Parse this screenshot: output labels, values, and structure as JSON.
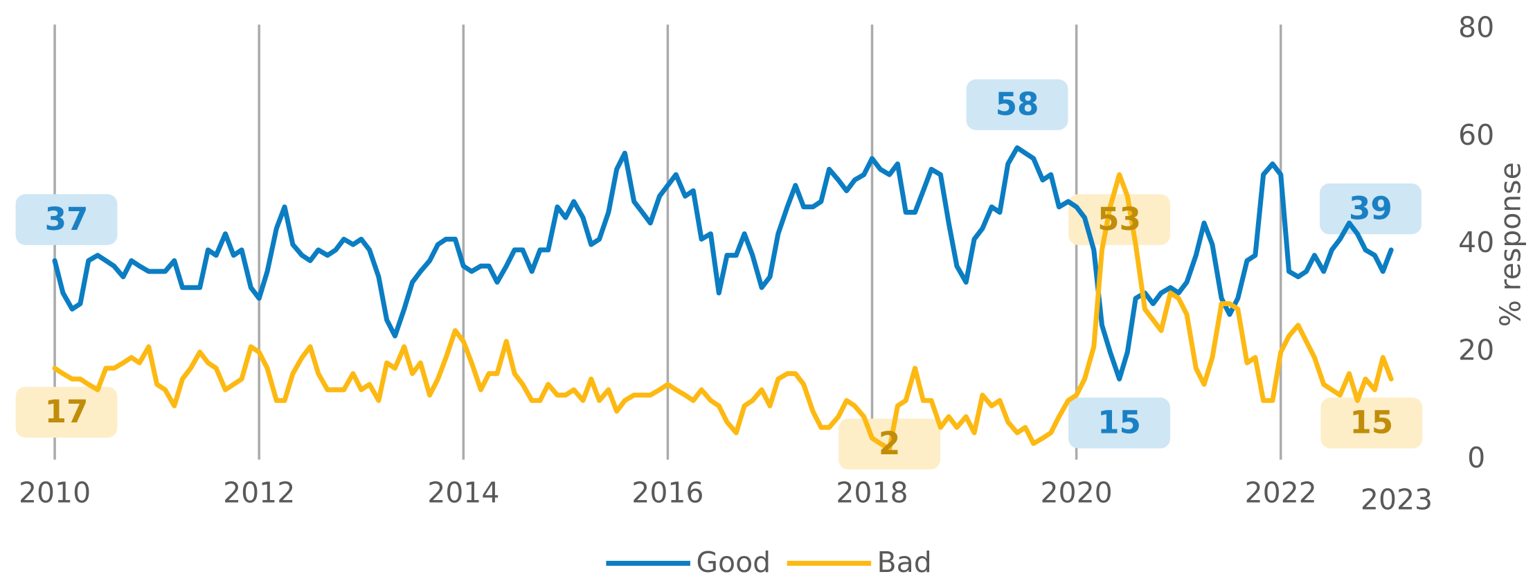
{
  "chart_data": {
    "type": "line",
    "ylabel": "% response",
    "xlim": [
      2009.6,
      2023.2
    ],
    "xticks": [
      2010,
      2012,
      2014,
      2016,
      2018,
      2020,
      2022
    ],
    "x_end_label": 2023,
    "ylim": [
      0,
      80
    ],
    "yticks": [
      0,
      20,
      40,
      60,
      80
    ],
    "grid": true,
    "legend": "bottom",
    "x": [
      2010,
      2010.08,
      2010.17,
      2010.25,
      2010.33,
      2010.42,
      2010.5,
      2010.58,
      2010.67,
      2010.75,
      2010.83,
      2010.92,
      2011,
      2011.08,
      2011.17,
      2011.25,
      2011.33,
      2011.42,
      2011.5,
      2011.58,
      2011.67,
      2011.75,
      2011.83,
      2011.92,
      2012,
      2012.08,
      2012.17,
      2012.25,
      2012.33,
      2012.42,
      2012.5,
      2012.58,
      2012.67,
      2012.75,
      2012.83,
      2012.92,
      2013,
      2013.08,
      2013.17,
      2013.25,
      2013.33,
      2013.42,
      2013.5,
      2013.58,
      2013.67,
      2013.75,
      2013.83,
      2013.92,
      2014,
      2014.08,
      2014.17,
      2014.25,
      2014.33,
      2014.42,
      2014.5,
      2014.58,
      2014.67,
      2014.75,
      2014.83,
      2014.92,
      2015,
      2015.08,
      2015.17,
      2015.25,
      2015.33,
      2015.42,
      2015.5,
      2015.58,
      2015.67,
      2015.75,
      2015.83,
      2015.92,
      2016,
      2016.08,
      2016.17,
      2016.25,
      2016.33,
      2016.42,
      2016.5,
      2016.58,
      2016.67,
      2016.75,
      2016.83,
      2016.92,
      2017,
      2017.08,
      2017.17,
      2017.25,
      2017.33,
      2017.42,
      2017.5,
      2017.58,
      2017.67,
      2017.75,
      2017.83,
      2017.92,
      2018,
      2018.08,
      2018.17,
      2018.25,
      2018.33,
      2018.42,
      2018.5,
      2018.58,
      2018.67,
      2018.75,
      2018.83,
      2018.92,
      2019,
      2019.08,
      2019.17,
      2019.25,
      2019.33,
      2019.42,
      2019.5,
      2019.58,
      2019.67,
      2019.75,
      2019.83,
      2019.92,
      2020,
      2020.08,
      2020.17,
      2020.25,
      2020.33,
      2020.42,
      2020.5,
      2020.58,
      2020.67,
      2020.75,
      2020.83,
      2020.92,
      2021,
      2021.08,
      2021.17,
      2021.25,
      2021.33,
      2021.42,
      2021.5,
      2021.58,
      2021.67,
      2021.75,
      2021.83,
      2021.92,
      2022,
      2022.08,
      2022.17,
      2022.25,
      2022.33,
      2022.42,
      2022.5,
      2022.58,
      2022.67,
      2022.75,
      2022.83,
      2022.92,
      2023,
      2023.08
    ],
    "series": [
      {
        "name": "Good",
        "color": "#0b7dc2",
        "label_color": "#1a80c4",
        "box_color": "#cfe6f4",
        "values": [
          37,
          31,
          28,
          29,
          37,
          38,
          37,
          36,
          34,
          37,
          36,
          35,
          35,
          35,
          37,
          32,
          32,
          32,
          39,
          38,
          42,
          38,
          39,
          32,
          30,
          35,
          43,
          47,
          40,
          38,
          37,
          39,
          38,
          39,
          41,
          40,
          41,
          39,
          34,
          26,
          23,
          28,
          33,
          35,
          37,
          40,
          41,
          41,
          36,
          35,
          36,
          36,
          33,
          36,
          39,
          39,
          35,
          39,
          39,
          47,
          45,
          48,
          45,
          40,
          41,
          46,
          54,
          57,
          48,
          46,
          44,
          49,
          51,
          53,
          49,
          50,
          41,
          42,
          31,
          38,
          38,
          42,
          38,
          32,
          34,
          42,
          47,
          51,
          47,
          47,
          48,
          54,
          52,
          50,
          52,
          53,
          56,
          54,
          53,
          55,
          46,
          46,
          50,
          54,
          53,
          44,
          36,
          33,
          41,
          43,
          47,
          46,
          55,
          58,
          57,
          56,
          52,
          53,
          47,
          48,
          47,
          45,
          39,
          25,
          20,
          15,
          20,
          30,
          31,
          29,
          31,
          32,
          31,
          33,
          38,
          44,
          40,
          30,
          27,
          30,
          37,
          38,
          53,
          55,
          53,
          35,
          34,
          35,
          38,
          35,
          39,
          41,
          44,
          42,
          39,
          38,
          35,
          39
        ]
      },
      {
        "name": "Bad",
        "color": "#fdb913",
        "label_color": "#c08d0b",
        "box_color": "#fdeec8",
        "values": [
          17,
          16,
          15,
          15,
          14,
          13,
          17,
          17,
          18,
          19,
          18,
          21,
          14,
          13,
          10,
          15,
          17,
          20,
          18,
          17,
          13,
          14,
          15,
          21,
          20,
          17,
          11,
          11,
          16,
          19,
          21,
          16,
          13,
          13,
          13,
          16,
          13,
          14,
          11,
          18,
          17,
          21,
          16,
          18,
          12,
          15,
          19,
          24,
          22,
          18,
          13,
          16,
          16,
          22,
          16,
          14,
          11,
          11,
          14,
          12,
          12,
          13,
          11,
          15,
          11,
          13,
          9,
          11,
          12,
          12,
          12,
          13,
          14,
          13,
          12,
          11,
          13,
          11,
          10,
          7,
          5,
          10,
          11,
          13,
          10,
          15,
          16,
          16,
          14,
          9,
          6,
          6,
          8,
          11,
          10,
          8,
          4,
          3,
          2,
          10,
          11,
          17,
          11,
          11,
          6,
          8,
          6,
          8,
          5,
          12,
          10,
          11,
          7,
          5,
          6,
          3,
          4,
          5,
          8,
          11,
          12,
          15,
          21,
          39,
          47,
          53,
          49,
          40,
          28,
          26,
          24,
          31,
          30,
          27,
          17,
          14,
          19,
          29,
          29,
          28,
          18,
          19,
          11,
          11,
          20,
          23,
          25,
          22,
          19,
          14,
          13,
          12,
          16,
          11,
          15,
          13,
          19,
          15
        ]
      }
    ],
    "annotations": [
      {
        "series": 0,
        "x": 2010,
        "y": 37,
        "label": "37"
      },
      {
        "series": 0,
        "x": 2019.42,
        "y": 58,
        "label": "58"
      },
      {
        "series": 0,
        "x": 2020.42,
        "y": 15,
        "label": "15"
      },
      {
        "series": 0,
        "x": 2023.08,
        "y": 39,
        "label": "39"
      },
      {
        "series": 1,
        "x": 2010,
        "y": 17,
        "label": "17"
      },
      {
        "series": 1,
        "x": 2018.17,
        "y": 2,
        "label": "2"
      },
      {
        "series": 1,
        "x": 2020.42,
        "y": 53,
        "label": "53"
      },
      {
        "series": 1,
        "x": 2023.08,
        "y": 15,
        "label": "15"
      }
    ]
  }
}
